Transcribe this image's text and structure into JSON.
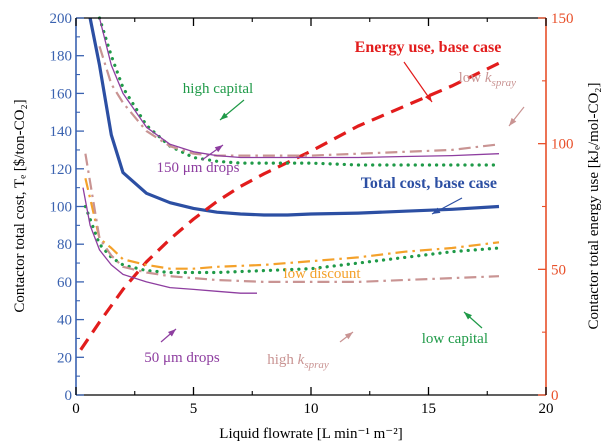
{
  "chart_data": {
    "type": "line",
    "xlabel": "Liquid flowrate [L min⁻¹ m⁻²]",
    "ylabel": "Contactor total cost, Tₑ [$/ton-CO₂]",
    "y2label": "Contactor total energy use [kJₑ/mol-CO₂]",
    "xlim": [
      0,
      20
    ],
    "ylim": [
      0,
      200
    ],
    "y2lim": [
      0,
      150
    ],
    "xticks": [
      0,
      5,
      10,
      15,
      20
    ],
    "yticks": [
      0,
      20,
      40,
      60,
      80,
      100,
      120,
      140,
      160,
      180,
      200
    ],
    "y2ticks": [
      0,
      50,
      100,
      150
    ],
    "grid": false,
    "colors": {
      "left_axis": "#3a62b0",
      "right_axis": "#e8502a",
      "x_axis": "#000000"
    },
    "series": [
      {
        "name": "Total cost, base case",
        "axis": "left",
        "color": "#2c4fa3",
        "dash": "solid",
        "width": 3.2,
        "x": [
          0.6,
          1.0,
          1.5,
          2.0,
          3.0,
          4.0,
          5.0,
          6.0,
          7.0,
          8.0,
          9.0,
          10.0,
          12.0,
          14.0,
          16.0,
          18.0
        ],
        "y": [
          200,
          175,
          138,
          118,
          107,
          102,
          99,
          97,
          96,
          95.5,
          95.5,
          96,
          96.5,
          97.5,
          98.5,
          100
        ]
      },
      {
        "name": "Energy use, base case",
        "axis": "right",
        "color": "#e21c1c",
        "dash": "longdash",
        "width": 3.2,
        "x": [
          0.2,
          1.0,
          2.0,
          3.0,
          4.0,
          5.0,
          6.0,
          7.0,
          8.0,
          10.0,
          12.0,
          14.0,
          16.0,
          18.0
        ],
        "y": [
          18,
          29,
          42,
          53,
          62,
          70,
          77,
          83,
          88,
          97,
          107,
          115,
          123,
          132
        ]
      },
      {
        "name": "high capital",
        "axis": "left",
        "color": "#1f9a48",
        "dash": "dotted",
        "width": 3.2,
        "x": [
          1.0,
          1.5,
          2.0,
          3.0,
          4.0,
          5.0,
          6.0,
          7.0,
          8.0,
          10.0,
          12.0,
          14.0,
          16.0,
          18.0
        ],
        "y": [
          200,
          180,
          163,
          143,
          132,
          126,
          124,
          123,
          123,
          123,
          122,
          122,
          122,
          122
        ]
      },
      {
        "name": "low k_spray",
        "axis": "left",
        "color": "#c99493",
        "dash": "dashdot",
        "width": 2.2,
        "x": [
          1.0,
          1.5,
          2.0,
          3.0,
          4.0,
          5.0,
          6.0,
          7.0,
          8.0,
          10.0,
          12.0,
          14.0,
          16.0,
          18.0
        ],
        "y": [
          185,
          165,
          155,
          140,
          132,
          128,
          127,
          127,
          127,
          127,
          128,
          129,
          130,
          133
        ]
      },
      {
        "name": "150 μm drops",
        "axis": "left",
        "color": "#8e3ea0",
        "dash": "solid",
        "width": 1.3,
        "x": [
          1.0,
          1.5,
          2.0,
          3.0,
          4.0,
          5.0,
          6.0,
          7.0,
          8.0,
          10.0,
          12.0,
          14.0,
          16.0,
          18.0
        ],
        "y": [
          200,
          175,
          160,
          142,
          133,
          129,
          127,
          126,
          126,
          126,
          126,
          126.5,
          127,
          128
        ]
      },
      {
        "name": "low discount",
        "axis": "left",
        "color": "#f4a12a",
        "dash": "dashdot",
        "width": 2.2,
        "x": [
          0.4,
          1.0,
          1.5,
          2.0,
          3.0,
          4.0,
          5.0,
          6.0,
          8.0,
          10.0,
          12.0,
          14.0,
          16.0,
          18.0
        ],
        "y": [
          115,
          83,
          78,
          72,
          69,
          67,
          67,
          68,
          69,
          71,
          73,
          76,
          78,
          81
        ]
      },
      {
        "name": "low capital",
        "axis": "left",
        "color": "#1f9a48",
        "dash": "dotted",
        "width": 3.2,
        "x": [
          0.4,
          1.0,
          1.5,
          2.0,
          3.0,
          4.0,
          5.0,
          6.0,
          8.0,
          10.0,
          12.0,
          14.0,
          16.0,
          18.0
        ],
        "y": [
          100,
          80,
          73,
          69,
          66,
          65,
          65,
          65,
          66,
          67,
          70,
          73,
          76,
          78
        ]
      },
      {
        "name": "high k_spray",
        "axis": "left",
        "color": "#c99493",
        "dash": "dashdot",
        "width": 2.2,
        "x": [
          0.4,
          1.0,
          1.5,
          2.0,
          3.0,
          4.0,
          5.0,
          6.0,
          8.0,
          10.0,
          12.0,
          14.0,
          16.0,
          18.0
        ],
        "y": [
          128,
          83,
          74,
          68,
          65,
          63,
          62,
          61,
          60,
          60,
          60,
          61,
          62,
          63
        ]
      },
      {
        "name": "50 μm drops",
        "axis": "left",
        "color": "#8e3ea0",
        "dash": "solid",
        "width": 1.3,
        "x": [
          0.3,
          0.6,
          1.0,
          1.5,
          2.0,
          3.0,
          4.0,
          5.0,
          6.0,
          7.0,
          7.7
        ],
        "y": [
          110,
          90,
          77,
          69,
          64,
          60,
          57,
          56,
          55,
          54,
          54
        ]
      }
    ],
    "annotations": [
      {
        "id": "energy",
        "text": "Energy use, base case",
        "color": "#e21c1c",
        "bold": true
      },
      {
        "id": "highcap",
        "text": "high capital",
        "color": "#1f9a48"
      },
      {
        "id": "lowkspray",
        "main": "low ",
        "italic": "k",
        "sub": "spray",
        "color": "#c99493"
      },
      {
        "id": "drops150",
        "text": "150 μm drops",
        "color": "#8e3ea0"
      },
      {
        "id": "total",
        "text": "Total cost, base case",
        "color": "#2c4fa3",
        "bold": true
      },
      {
        "id": "lowdisc",
        "text": "low discount",
        "color": "#f4a12a"
      },
      {
        "id": "lowcap",
        "text": "low capital",
        "color": "#1f9a48"
      },
      {
        "id": "drops50",
        "text": "50 μm drops",
        "color": "#8e3ea0"
      },
      {
        "id": "highkspray",
        "main": "high ",
        "italic": "k",
        "sub": "spray",
        "color": "#c99493"
      }
    ]
  }
}
